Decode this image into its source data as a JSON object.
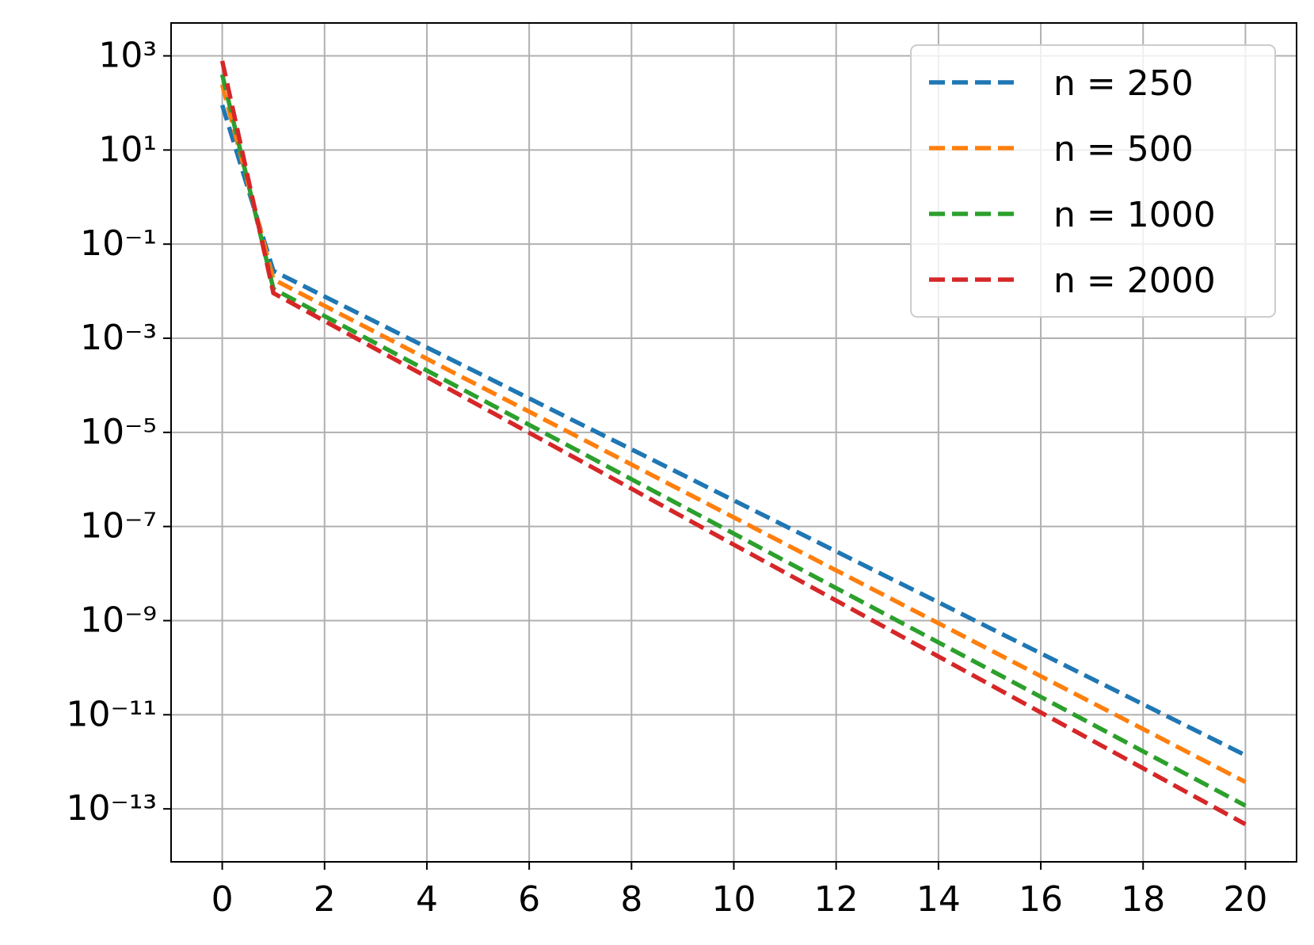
{
  "chart_data": {
    "type": "line",
    "yscale": "log",
    "grid": true,
    "legend": "upper right",
    "x": [
      0,
      1,
      2,
      3,
      4,
      5,
      6,
      7,
      8,
      9,
      10,
      11,
      12,
      13,
      14,
      15,
      16,
      17,
      18,
      19,
      20
    ],
    "xlim": [
      -1,
      21
    ],
    "xticks": [
      0,
      2,
      4,
      6,
      8,
      10,
      12,
      14,
      16,
      18,
      20
    ],
    "ylim": [
      7.5e-15,
      5000
    ],
    "yticks": [
      {
        "value": 1000,
        "label": "10³"
      },
      {
        "value": 10,
        "label": "10¹"
      },
      {
        "value": 0.1,
        "label": "10⁻¹"
      },
      {
        "value": 0.001,
        "label": "10⁻³"
      },
      {
        "value": 1e-05,
        "label": "10⁻⁵"
      },
      {
        "value": 1e-07,
        "label": "10⁻⁷"
      },
      {
        "value": 1e-09,
        "label": "10⁻⁹"
      },
      {
        "value": 1e-11,
        "label": "10⁻¹¹"
      },
      {
        "value": 1e-13,
        "label": "10⁻¹³"
      }
    ],
    "series": [
      {
        "name": "n = 250",
        "color": "#1f77b4",
        "values": [
          90,
          0.027,
          0.0077,
          0.00222,
          0.000638,
          0.000184,
          5.27e-05,
          1.51e-05,
          4.36e-06,
          1.25e-06,
          3.58e-07,
          1.03e-07,
          2.96e-08,
          8.5e-09,
          2.45e-09,
          7e-10,
          2.02e-10,
          5.8e-11,
          1.67e-11,
          4.8e-12,
          1.38e-12
        ]
      },
      {
        "name": "n = 500",
        "color": "#ff7f0e",
        "values": [
          245,
          0.0178,
          0.00488,
          0.00134,
          0.000366,
          0.0001,
          2.75e-05,
          7.55e-06,
          2.07e-06,
          5.68e-07,
          1.56e-07,
          4.27e-08,
          1.17e-08,
          3.21e-09,
          8.8e-10,
          2.41e-10,
          6.6e-11,
          1.81e-11,
          4.97e-12,
          1.36e-12,
          3.73e-13
        ]
      },
      {
        "name": "n = 1000",
        "color": "#2ca02c",
        "values": [
          400,
          0.0112,
          0.00296,
          0.000783,
          0.000207,
          5.47e-05,
          1.45e-05,
          3.82e-06,
          1.01e-06,
          2.67e-07,
          7.05e-08,
          1.86e-08,
          4.92e-09,
          1.3e-09,
          3.44e-10,
          9.1e-11,
          2.4e-11,
          6.34e-12,
          1.67e-12,
          4.43e-13,
          1.17e-13
        ]
      },
      {
        "name": "n = 2000",
        "color": "#d62728",
        "values": [
          780,
          0.0091,
          0.00232,
          0.000592,
          0.000151,
          3.84e-05,
          9.8e-06,
          2.49e-06,
          6.34e-07,
          1.61e-07,
          4.11e-08,
          1.05e-08,
          2.67e-09,
          6.79e-10,
          1.73e-10,
          4.41e-11,
          1.12e-11,
          2.86e-12,
          7.28e-13,
          1.85e-13,
          4.72e-14
        ]
      }
    ]
  }
}
